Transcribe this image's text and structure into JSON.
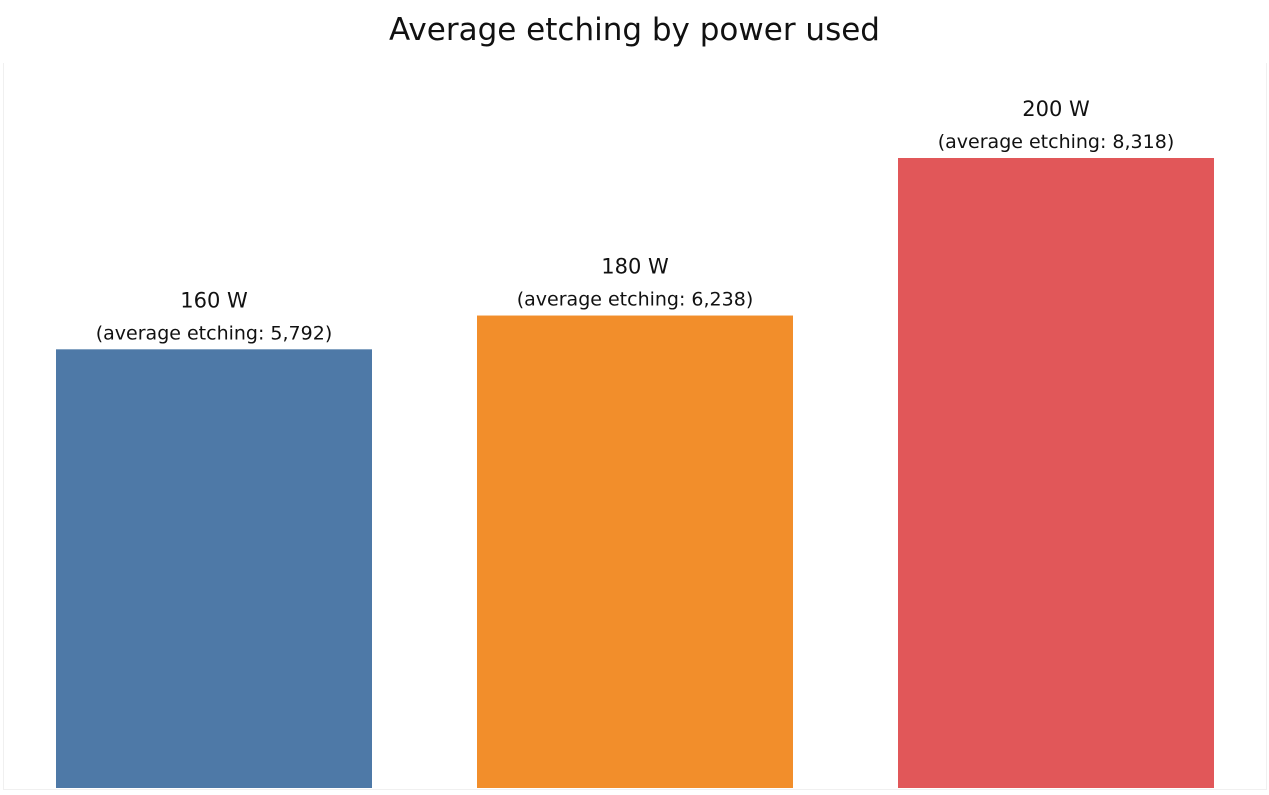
{
  "chart_data": {
    "type": "bar",
    "title": "Average etching by power used",
    "xlabel": "",
    "ylabel": "",
    "categories": [
      "160 W",
      "180 W",
      "200 W"
    ],
    "values": [
      5792,
      6238,
      8318
    ],
    "value_labels": [
      "(average etching: 5,792)",
      "(average etching: 6,238)",
      "(average etching: 8,318)"
    ],
    "colors": [
      "#4e79a7",
      "#f28e2b",
      "#e15759"
    ],
    "ylim": [
      0,
      8318
    ],
    "grid": false,
    "legend": "none"
  }
}
